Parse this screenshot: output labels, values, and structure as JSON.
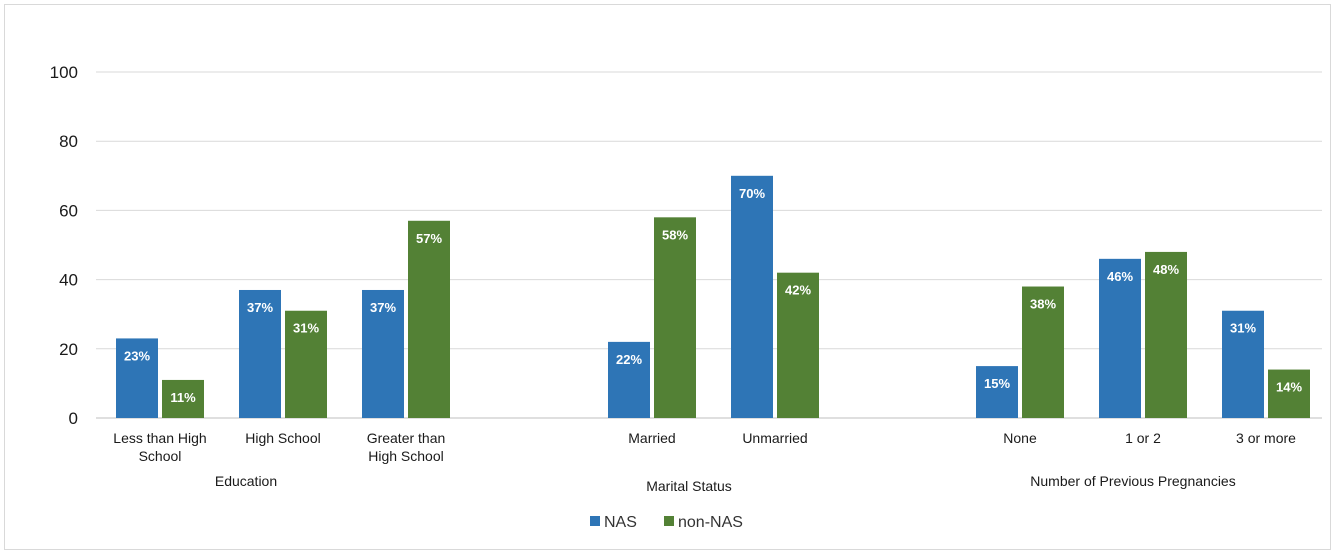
{
  "chart_data": {
    "type": "bar",
    "ylim": [
      0,
      100
    ],
    "yticks": [
      "0",
      "20",
      "40",
      "60",
      "80",
      "100"
    ],
    "grid": true,
    "legend_position": "bottom",
    "groups": [
      {
        "label": "Education",
        "categories": [
          {
            "lines": [
              "Less than High",
              "School"
            ],
            "values": [
              23,
              11
            ],
            "labels": [
              "23%",
              "11%"
            ]
          },
          {
            "lines": [
              "High School"
            ],
            "values": [
              37,
              31
            ],
            "labels": [
              "37%",
              "31%"
            ]
          },
          {
            "lines": [
              "Greater than",
              "High School"
            ],
            "values": [
              37,
              57
            ],
            "labels": [
              "37%",
              "57%"
            ]
          }
        ]
      },
      {
        "label": "Marital Status",
        "categories": [
          {
            "lines": [
              "Married"
            ],
            "values": [
              22,
              58
            ],
            "labels": [
              "22%",
              "58%"
            ]
          },
          {
            "lines": [
              "Unmarried"
            ],
            "values": [
              70,
              42
            ],
            "labels": [
              "70%",
              "42%"
            ]
          }
        ]
      },
      {
        "label": "Number of Previous Pregnancies",
        "categories": [
          {
            "lines": [
              "None"
            ],
            "values": [
              15,
              38
            ],
            "labels": [
              "15%",
              "38%"
            ]
          },
          {
            "lines": [
              "1 or 2"
            ],
            "values": [
              46,
              48
            ],
            "labels": [
              "46%",
              "48%"
            ]
          },
          {
            "lines": [
              "3 or more"
            ],
            "values": [
              31,
              14
            ],
            "labels": [
              "31%",
              "14%"
            ]
          }
        ]
      }
    ],
    "series": [
      {
        "name": "NAS",
        "color": "#2e75b6"
      },
      {
        "name": "non-NAS",
        "color": "#538135"
      }
    ]
  }
}
